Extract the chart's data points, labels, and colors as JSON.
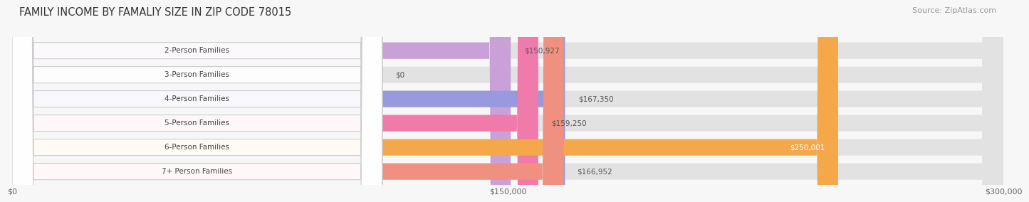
{
  "title": "FAMILY INCOME BY FAMALIY SIZE IN ZIP CODE 78015",
  "source": "Source: ZipAtlas.com",
  "categories": [
    "2-Person Families",
    "3-Person Families",
    "4-Person Families",
    "5-Person Families",
    "6-Person Families",
    "7+ Person Families"
  ],
  "values": [
    150927,
    0,
    167350,
    159250,
    250001,
    166952
  ],
  "bar_colors": [
    "#c9a0d8",
    "#6dcece",
    "#9999dd",
    "#f07aaa",
    "#f5a84a",
    "#f09080"
  ],
  "bar_bg_color": "#e8e8e8",
  "xlim": [
    0,
    300000
  ],
  "xticks": [
    0,
    150000,
    300000
  ],
  "xtick_labels": [
    "$0",
    "$150,000",
    "$300,000"
  ],
  "title_fontsize": 10.5,
  "source_fontsize": 8,
  "background_color": "#f7f7f7",
  "label_color": "#444444",
  "value_color_outside": "#555555",
  "value_color_inside": "#ffffff",
  "inside_threshold": 230000
}
